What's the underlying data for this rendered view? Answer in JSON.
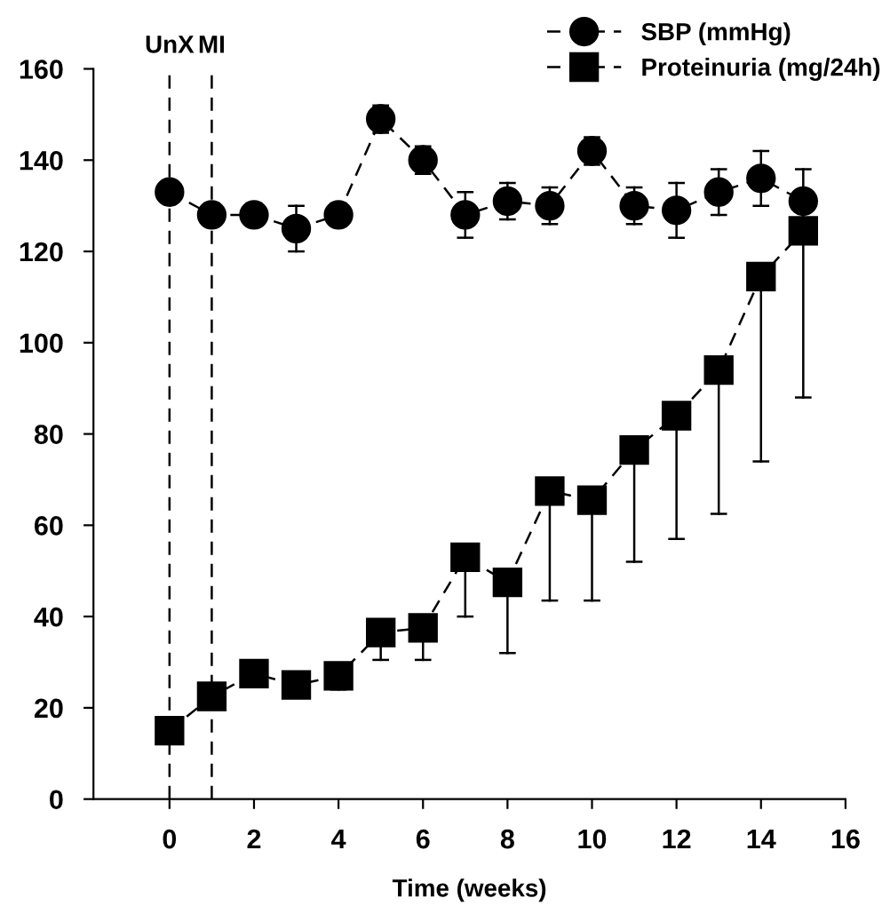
{
  "chart_data": {
    "type": "line",
    "xlabel": "Time (weeks)",
    "x": [
      0,
      1,
      2,
      3,
      4,
      5,
      6,
      7,
      8,
      9,
      10,
      11,
      12,
      13,
      14,
      15
    ],
    "series": [
      {
        "name": "SBP (mmHg)",
        "color": "#000000",
        "marker": "circle",
        "values": [
          133,
          128,
          128,
          125,
          128,
          149,
          140,
          128,
          131,
          130,
          142,
          130,
          129,
          133,
          136,
          131
        ],
        "errors": [
          null,
          2.5,
          2.5,
          5,
          2.5,
          3,
          3,
          5,
          4,
          4,
          3,
          4,
          6,
          5,
          6,
          7
        ]
      },
      {
        "name": "Proteinuria (mg/24h)",
        "color": "#000000",
        "marker": "square",
        "values": [
          15,
          22.5,
          27.5,
          25,
          27,
          36.5,
          37.5,
          53,
          47.5,
          67.5,
          65.5,
          76.5,
          84,
          94,
          114.5,
          124.5
        ],
        "errors": [
          null,
          null,
          [
            25,
            27.5
          ],
          [
            23,
            25
          ],
          [
            24,
            27
          ],
          [
            30.5,
            36.5
          ],
          [
            30.5,
            37.5
          ],
          [
            40,
            53
          ],
          [
            32,
            47.5
          ],
          [
            43.5,
            67.5
          ],
          [
            43.5,
            65.5
          ],
          [
            52,
            76.5
          ],
          [
            57,
            84
          ],
          [
            62.5,
            94
          ],
          [
            74,
            114.5
          ],
          [
            88,
            124.5
          ]
        ]
      }
    ],
    "line_style": "dashed",
    "xlim": [
      -1.8,
      16
    ],
    "xticks": [
      0,
      2,
      4,
      6,
      8,
      10,
      12,
      14,
      16
    ],
    "ylim": [
      0,
      160
    ],
    "yticks": [
      0,
      20,
      40,
      60,
      80,
      100,
      120,
      140,
      160
    ],
    "ref_lines": [
      {
        "axis": "x",
        "value": 0,
        "label": "UnX",
        "line_style": "dashed"
      },
      {
        "axis": "x",
        "value": 1,
        "label": "MI",
        "line_style": "dashed"
      }
    ],
    "legend": "top right",
    "grid": false
  }
}
